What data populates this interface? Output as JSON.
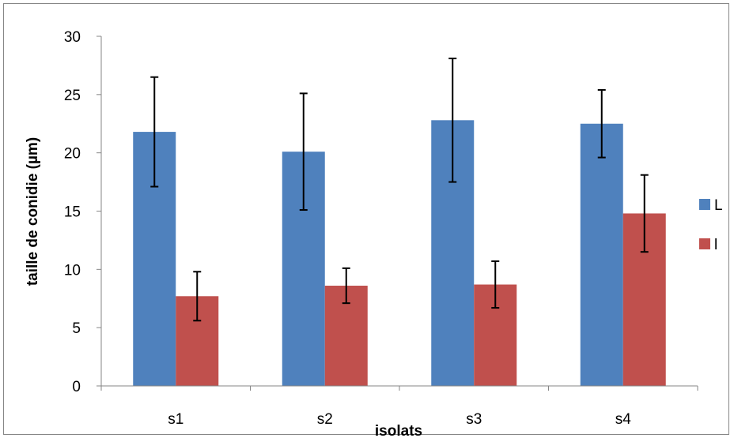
{
  "chart_data": {
    "type": "bar",
    "categories": [
      "s1",
      "s2",
      "s3",
      "s4"
    ],
    "series": [
      {
        "name": "L",
        "color": "#4F81BD",
        "values": [
          21.8,
          20.1,
          22.8,
          22.5
        ],
        "errors": [
          4.7,
          5.0,
          5.3,
          2.9
        ]
      },
      {
        "name": "l",
        "color": "#C0504D",
        "values": [
          7.7,
          8.6,
          8.7,
          14.8
        ],
        "errors": [
          2.1,
          1.5,
          2.0,
          3.3
        ]
      }
    ],
    "xlabel": "isolats",
    "ylabel": "taille de conidie (µm)",
    "ylim": [
      0,
      30
    ],
    "yticks": [
      0,
      5,
      10,
      15,
      20,
      25,
      30
    ],
    "grid": false,
    "legend": "right"
  }
}
